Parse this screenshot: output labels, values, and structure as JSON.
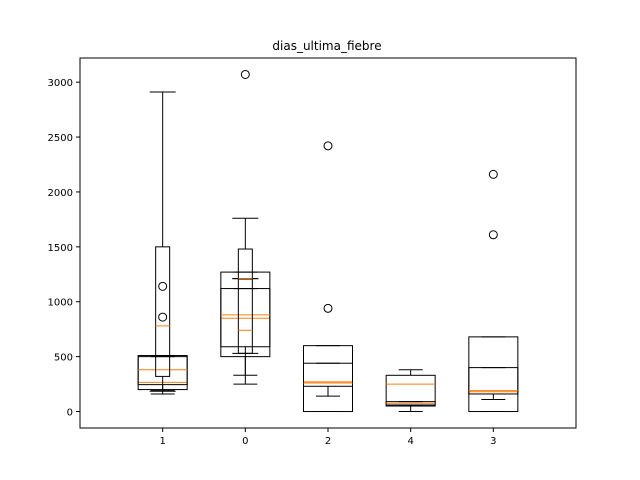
{
  "chart_data": {
    "type": "boxplot",
    "title": "dias_ultima_fiebre",
    "xlabel": "",
    "ylabel": "",
    "categories": [
      "1",
      "0",
      "2",
      "4",
      "3"
    ],
    "ylim": [
      -150,
      3220
    ],
    "yticks": [
      0,
      500,
      1000,
      1500,
      2000,
      2500,
      3000
    ],
    "grid": false,
    "colors": {
      "box": "#000000",
      "median": "#ff7f0e"
    },
    "boxes": [
      {
        "box_label": "1",
        "series": "wide",
        "whislo": 160,
        "q1": 200,
        "med": 265,
        "q3": 510,
        "whishi": 510,
        "fliers": []
      },
      {
        "box_label": "1",
        "series": "wide",
        "whislo": 190,
        "q1": 245,
        "med": 380,
        "q3": 500,
        "whishi": 500,
        "fliers": []
      },
      {
        "box_label": "1",
        "series": "narrow",
        "whislo": 185,
        "q1": 320,
        "med": 780,
        "q3": 1500,
        "whishi": 2910,
        "fliers": [
          860,
          1140
        ]
      },
      {
        "box_label": "0",
        "series": "wide",
        "whislo": 250,
        "q1": 500,
        "med": 850,
        "q3": 1270,
        "whishi": 1270,
        "fliers": []
      },
      {
        "box_label": "0",
        "series": "wide",
        "whislo": 330,
        "q1": 590,
        "med": 880,
        "q3": 1120,
        "whishi": 1120,
        "fliers": []
      },
      {
        "box_label": "0",
        "series": "narrow",
        "whislo": 530,
        "q1": 530,
        "med": 740,
        "q3": 1480,
        "whishi": 1760,
        "fliers": [
          3070
        ]
      },
      {
        "box_label": "0",
        "series": "narrow",
        "whislo": 1210,
        "q1": 1210,
        "med": 1210,
        "q3": 1210,
        "whishi": 1210,
        "fliers": []
      },
      {
        "box_label": "2",
        "series": "wide",
        "whislo": 0,
        "q1": 0,
        "med": 270,
        "q3": 600,
        "whishi": 600,
        "fliers": [
          940,
          2420
        ]
      },
      {
        "box_label": "2",
        "series": "wide",
        "whislo": 140,
        "q1": 230,
        "med": 260,
        "q3": 440,
        "whishi": 440,
        "fliers": []
      },
      {
        "box_label": "4",
        "series": "wide",
        "whislo": 0,
        "q1": 50,
        "med": 250,
        "q3": 330,
        "whishi": 380,
        "fliers": []
      },
      {
        "box_label": "4",
        "series": "wide",
        "whislo": 60,
        "q1": 60,
        "med": 75,
        "q3": 90,
        "whishi": 90,
        "fliers": []
      },
      {
        "box_label": "3",
        "series": "wide",
        "whislo": 0,
        "q1": 0,
        "med": 180,
        "q3": 680,
        "whishi": 680,
        "fliers": [
          1610,
          2160
        ]
      },
      {
        "box_label": "3",
        "series": "wide",
        "whislo": 110,
        "q1": 160,
        "med": 190,
        "q3": 400,
        "whishi": 400,
        "fliers": []
      }
    ]
  }
}
